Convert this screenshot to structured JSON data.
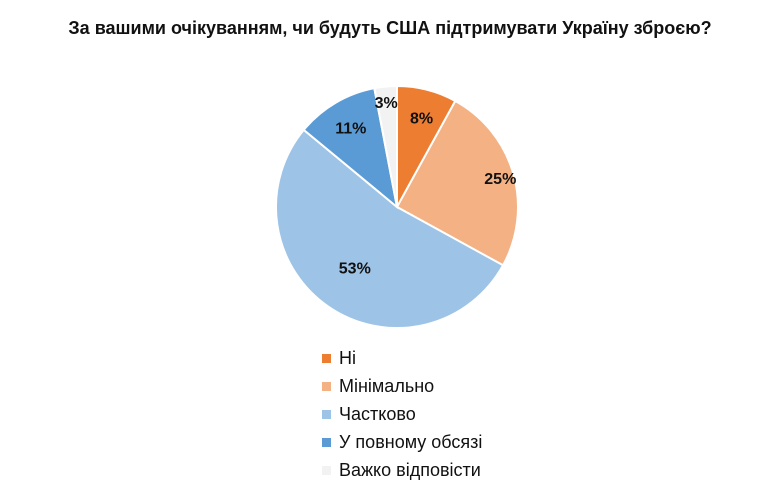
{
  "chart_data": {
    "type": "pie",
    "title": "За вашими очікуванням, чи будуть США підтримувати Україну зброєю?",
    "categories": [
      "Ні",
      "Мінімально",
      "Частково",
      "У повному обсязі",
      "Важко відповісти"
    ],
    "values": [
      8,
      25,
      53,
      11,
      3
    ],
    "value_labels": [
      "8%",
      "25%",
      "53%",
      "11%",
      "3%"
    ],
    "colors": [
      "#ED7D31",
      "#F4B183",
      "#9DC3E6",
      "#5B9BD5",
      "#F2F2F2"
    ],
    "start": "top, clockwise",
    "legend_position": "bottom"
  }
}
